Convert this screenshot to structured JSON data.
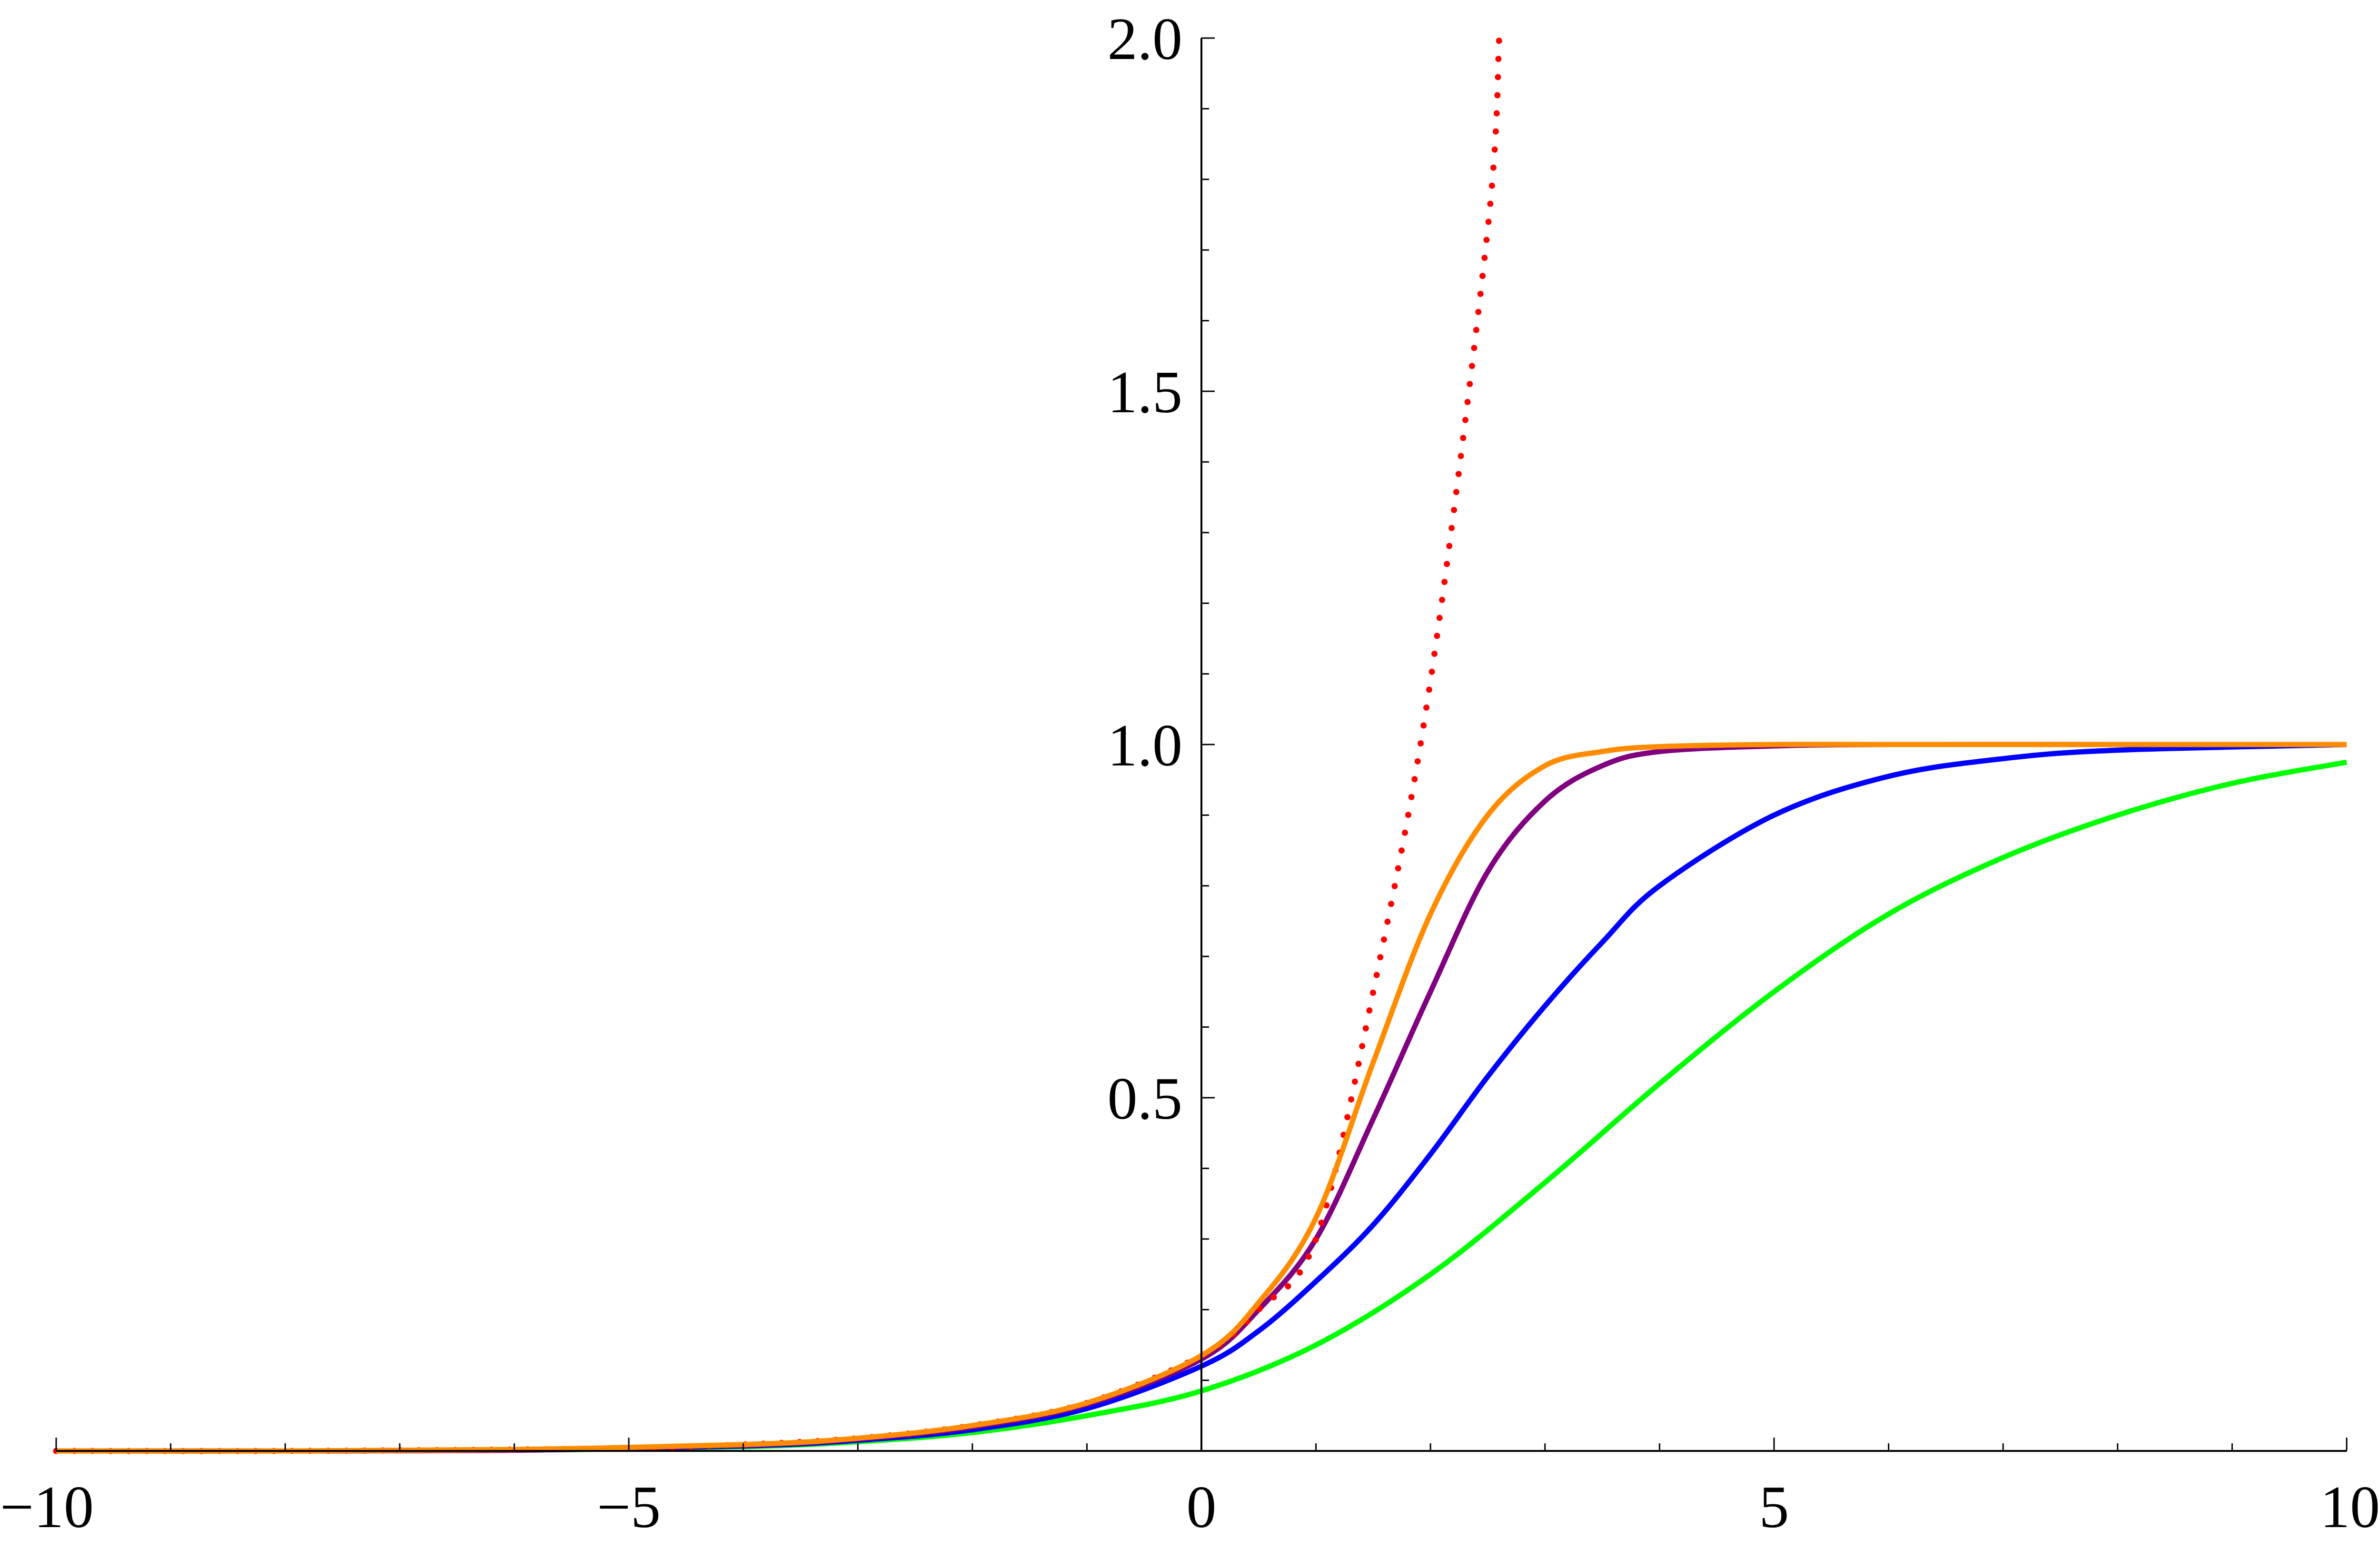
{
  "chart_data": {
    "type": "line",
    "title": "",
    "xlabel": "",
    "ylabel": "",
    "xlim": [
      -10,
      10
    ],
    "ylim": [
      0,
      2.0
    ],
    "grid": false,
    "x_ticks": [
      -10,
      -5,
      0,
      5,
      10
    ],
    "x_tick_labels": [
      "−10",
      "−5",
      "0",
      "5",
      "10"
    ],
    "y_ticks": [
      0.5,
      1.0,
      1.5,
      2.0
    ],
    "y_tick_labels": [
      "0.5",
      "1.0",
      "1.5",
      "2.0"
    ],
    "series": [
      {
        "style": "dotted",
        "color": "#ff0000",
        "x": [
          -10,
          -8,
          -6,
          -5,
          -4,
          -3,
          -2,
          -1,
          0,
          0.5,
          1,
          1.5,
          2,
          2.5,
          2.6
        ],
        "y": [
          0.0,
          0.0,
          0.002,
          0.004,
          0.009,
          0.018,
          0.036,
          0.068,
          0.135,
          0.2,
          0.3,
          0.65,
          1.09,
          1.73,
          2.0
        ]
      },
      {
        "style": "solid",
        "color": "#00ff00",
        "x": [
          -10,
          -8,
          -6,
          -4,
          -3,
          -2,
          -1,
          0,
          1,
          2,
          3,
          4,
          5,
          6,
          7,
          8,
          9,
          10
        ],
        "y": [
          0.0,
          0.0,
          0.001,
          0.006,
          0.013,
          0.026,
          0.05,
          0.085,
          0.15,
          0.25,
          0.38,
          0.52,
          0.65,
          0.76,
          0.84,
          0.9,
          0.945,
          0.975
        ]
      },
      {
        "style": "solid",
        "color": "#0000ff",
        "x": [
          -10,
          -8,
          -6,
          -4,
          -3,
          -2,
          -1,
          0,
          0.5,
          1,
          1.5,
          2,
          2.5,
          3,
          3.5,
          4,
          5,
          6,
          7,
          8,
          10
        ],
        "y": [
          0.0,
          0.0,
          0.001,
          0.007,
          0.015,
          0.03,
          0.06,
          0.12,
          0.17,
          0.24,
          0.32,
          0.42,
          0.53,
          0.63,
          0.72,
          0.8,
          0.9,
          0.955,
          0.98,
          0.992,
          1.0
        ]
      },
      {
        "style": "solid",
        "color": "#800080",
        "x": [
          -10,
          -8,
          -6,
          -4,
          -3,
          -2,
          -1,
          0,
          0.5,
          1,
          1.5,
          2,
          2.5,
          3,
          3.5,
          4,
          5,
          6,
          8,
          10
        ],
        "y": [
          0.0,
          0.0,
          0.001,
          0.008,
          0.017,
          0.034,
          0.066,
          0.13,
          0.2,
          0.3,
          0.47,
          0.65,
          0.82,
          0.92,
          0.97,
          0.99,
          0.998,
          1.0,
          1.0,
          1.0
        ]
      },
      {
        "style": "solid",
        "color": "#ff8c00",
        "x": [
          -10,
          -8,
          -6,
          -4,
          -3,
          -2,
          -1,
          0,
          0.5,
          1,
          1.5,
          2,
          2.5,
          3,
          3.5,
          4,
          5,
          6,
          8,
          10
        ],
        "y": [
          0.0,
          0.0,
          0.002,
          0.009,
          0.018,
          0.036,
          0.068,
          0.135,
          0.21,
          0.33,
          0.55,
          0.76,
          0.9,
          0.97,
          0.99,
          0.997,
          1.0,
          1.0,
          1.0,
          1.0
        ]
      }
    ]
  }
}
